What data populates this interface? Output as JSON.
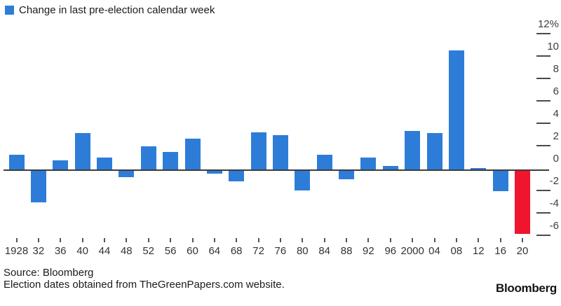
{
  "legend": {
    "label": "Change in last pre-election calendar week",
    "swatch_color": "#2d7dd8"
  },
  "chart_data": {
    "type": "bar",
    "title": "Change in last pre-election calendar week",
    "categories": [
      "1928",
      "32",
      "36",
      "40",
      "44",
      "48",
      "52",
      "56",
      "60",
      "64",
      "68",
      "72",
      "76",
      "80",
      "84",
      "88",
      "92",
      "96",
      "2000",
      "04",
      "08",
      "12",
      "16",
      "20"
    ],
    "values": [
      1.4,
      -2.9,
      0.9,
      3.3,
      1.1,
      -0.6,
      2.1,
      1.6,
      2.8,
      -0.3,
      -1.0,
      3.4,
      3.1,
      -1.8,
      1.4,
      -0.8,
      1.1,
      0.4,
      3.5,
      3.3,
      10.7,
      0.2,
      -1.9,
      -5.7
    ],
    "unit": "%",
    "bar_color": "#2d7dd8",
    "highlight": {
      "category": "20",
      "color": "#f0142d"
    },
    "y_axis": {
      "side": "right",
      "tick_values": [
        12,
        10,
        8,
        6,
        4,
        2,
        0,
        -2,
        -4,
        -6
      ],
      "tick_labels": [
        "12%",
        "10",
        "8",
        "6",
        "4",
        "2",
        "0",
        "-2",
        "-4",
        "-6"
      ],
      "ylim": [
        -7.5,
        12.5
      ]
    },
    "xlabel": "",
    "ylabel": "",
    "grid": false,
    "legend_position": "top-left"
  },
  "footer": {
    "source": "Source: Bloomberg",
    "note": "Election dates obtained from TheGreenPapers.com website.",
    "brand": "Bloomberg"
  }
}
